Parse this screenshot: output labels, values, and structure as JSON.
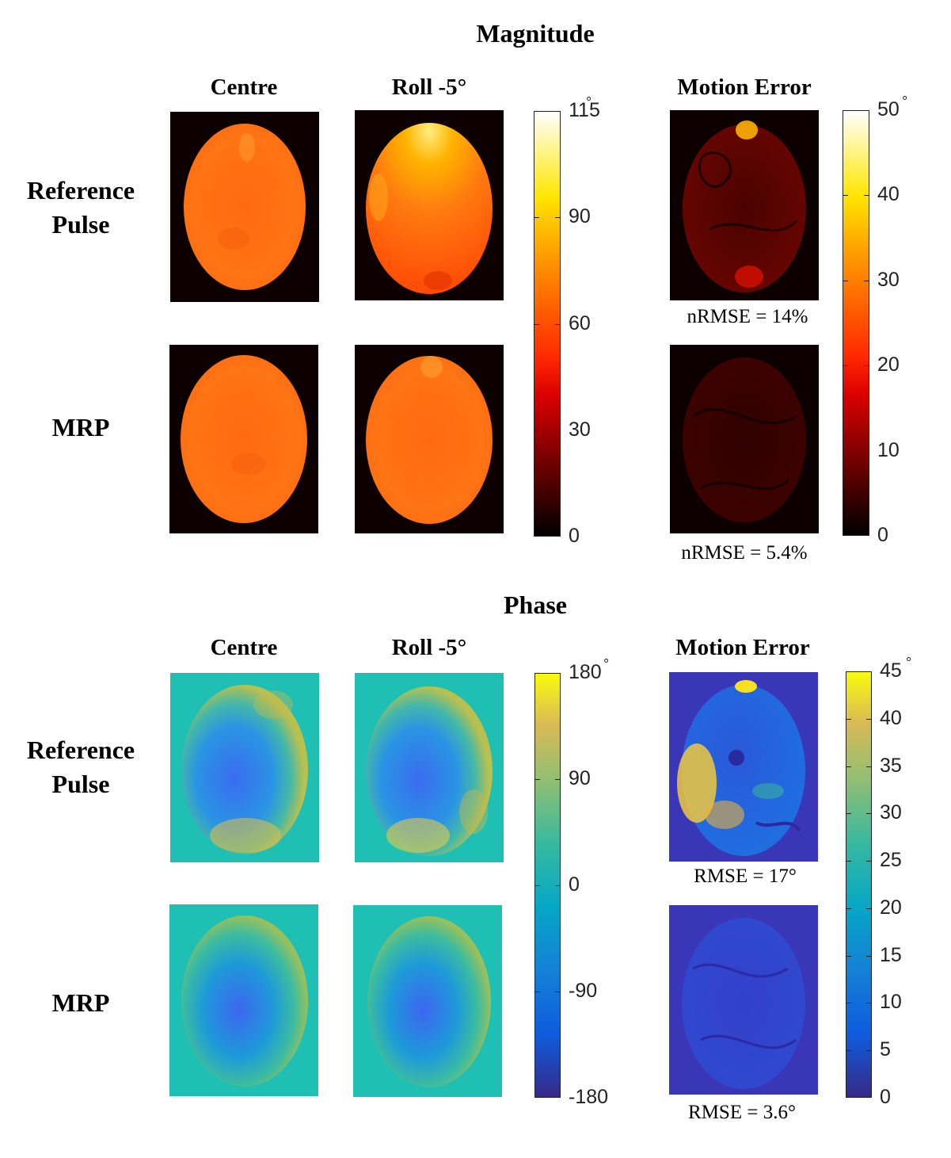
{
  "magnitude": {
    "title": "Magnitude",
    "columns": [
      "Centre",
      "Roll -5°",
      "Motion Error"
    ],
    "rows": [
      "Reference\nPulse",
      "MRP"
    ],
    "colorbar_main": {
      "ticks": [
        "115",
        "90",
        "60",
        "30",
        "0"
      ],
      "unit": "°"
    },
    "colorbar_error": {
      "ticks": [
        "50",
        "40",
        "30",
        "20",
        "10",
        "0"
      ],
      "unit": "°"
    },
    "errors": [
      "nRMSE = 14%",
      "nRMSE = 5.4%"
    ]
  },
  "phase": {
    "title": "Phase",
    "columns": [
      "Centre",
      "Roll -5°",
      "Motion Error"
    ],
    "rows": [
      "Reference\nPulse",
      "MRP"
    ],
    "colorbar_main": {
      "ticks": [
        "180",
        "90",
        "0",
        "-90",
        "-180"
      ],
      "unit": "°"
    },
    "colorbar_error": {
      "ticks": [
        "45",
        "40",
        "35",
        "30",
        "25",
        "20",
        "15",
        "10",
        "5",
        "0"
      ],
      "unit": "°"
    },
    "errors": [
      "RMSE = 17°",
      "RMSE = 3.6°"
    ]
  },
  "colors": {
    "hot_bg": "#0c0000",
    "parula_bg": "#1fbfb4",
    "parula_error_bg": "#3a36b8"
  }
}
